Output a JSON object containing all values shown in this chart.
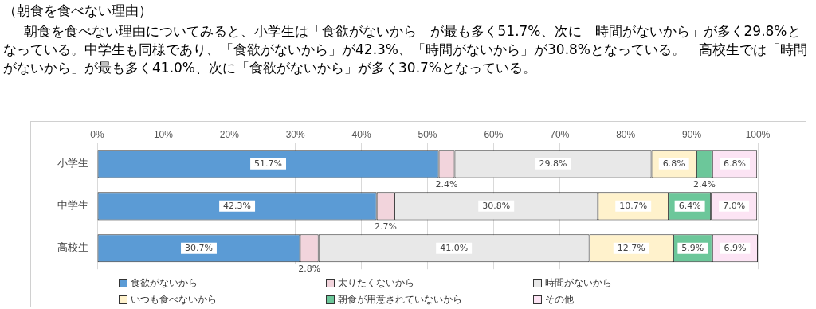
{
  "chart_data": {
    "type": "bar",
    "orientation": "horizontal",
    "stacked": true,
    "title": "（朝食を食べない理由）",
    "subtitle": "朝食を食べない理由についてみると、小学生は「食欲がないから」が最も多く51.7%、次に「時間がないから」が多く29.8%となっている。中学生も同様であり、「食欲がないから」が42.3%、「時間がないから」が30.8%となっている。　高校生では「時間がないから」が最も多く41.0%、次に「食欲がないから」が多く30.7%となっている。",
    "categories": [
      "小学生",
      "中学生",
      "高校生"
    ],
    "series": [
      {
        "name": "食欲がないから",
        "color": "#5b9bd5",
        "values": [
          51.7,
          42.3,
          30.7
        ],
        "value_labels": [
          "51.7%",
          "42.3%",
          "30.7%"
        ]
      },
      {
        "name": "太りたくないから",
        "color": "#f2d4dc",
        "values": [
          2.4,
          2.7,
          2.8
        ],
        "value_labels": [
          "2.4%",
          "2.7%",
          "2.8%"
        ]
      },
      {
        "name": "時間がないから",
        "color": "#e8e8e8",
        "values": [
          29.8,
          30.8,
          41.0
        ],
        "value_labels": [
          "29.8%",
          "30.8%",
          "41.0%"
        ]
      },
      {
        "name": "いつも食べないから",
        "color": "#fff2cc",
        "values": [
          6.8,
          10.7,
          12.7
        ],
        "value_labels": [
          "6.8%",
          "10.7%",
          "12.7%"
        ]
      },
      {
        "name": "朝食が用意されていないから",
        "color": "#6cc79a",
        "values": [
          2.4,
          6.4,
          5.9
        ],
        "value_labels": [
          "2.4%",
          "6.4%",
          "5.9%"
        ]
      },
      {
        "name": "その他",
        "color": "#fce4f4",
        "values": [
          6.8,
          7.0,
          6.9
        ],
        "value_labels": [
          "6.8%",
          "7.0%",
          "6.9%"
        ]
      }
    ],
    "xlim": [
      0,
      100
    ],
    "xticks": [
      {
        "value": 0,
        "label": "0%"
      },
      {
        "value": 10,
        "label": "10%"
      },
      {
        "value": 20,
        "label": "20%"
      },
      {
        "value": 30,
        "label": "30%"
      },
      {
        "value": 40,
        "label": "40%"
      },
      {
        "value": 50,
        "label": "50%"
      },
      {
        "value": 60,
        "label": "60%"
      },
      {
        "value": 70,
        "label": "70%"
      },
      {
        "value": 80,
        "label": "80%"
      },
      {
        "value": 90,
        "label": "90%"
      },
      {
        "value": 100,
        "label": "100%"
      }
    ],
    "grid": "x",
    "legend": "bottom"
  }
}
